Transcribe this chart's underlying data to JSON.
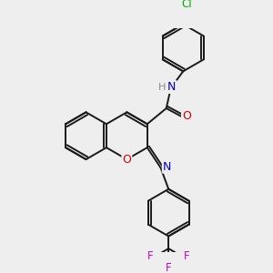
{
  "background_color": "#eeeeee",
  "bond_color": "#1a1a1a",
  "atom_colors": {
    "N": "#0000cc",
    "O": "#cc0000",
    "Cl": "#00aa00",
    "F": "#cc00cc",
    "H": "#888888",
    "C": "#1a1a1a"
  },
  "figsize": [
    3.0,
    3.0
  ],
  "dpi": 100,
  "xlim": [
    0,
    10
  ],
  "ylim": [
    0,
    10
  ]
}
